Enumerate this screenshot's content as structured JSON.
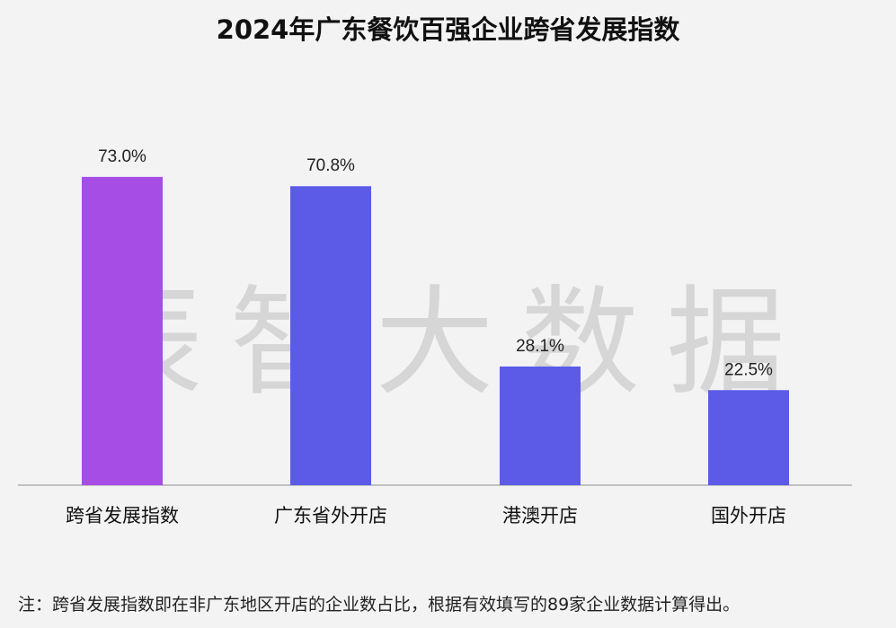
{
  "title": "2024年广东餐饮百强企业跨省发展指数",
  "watermark": "辰智大数据",
  "note": "注：跨省发展指数即在非广东地区开店的企业数占比，根据有效填写的89家企业数据计算得出。",
  "colors": {
    "background": "#f3f3f3",
    "highlight_bar": "#a64de6",
    "bar": "#5b5be8",
    "axis": "#b0b0b0"
  },
  "chart_data": {
    "type": "bar",
    "title": "2024年广东餐饮百强企业跨省发展指数",
    "categories": [
      "跨省发展指数",
      "广东省外开店",
      "港澳开店",
      "国外开店"
    ],
    "values": [
      73.0,
      70.8,
      28.1,
      22.5
    ],
    "value_labels": [
      "73.0%",
      "70.8%",
      "28.1%",
      "22.5%"
    ],
    "highlight_index": 0,
    "ylim": [
      0,
      100
    ],
    "grid": false,
    "legend": "none",
    "xlabel": "",
    "ylabel": ""
  }
}
